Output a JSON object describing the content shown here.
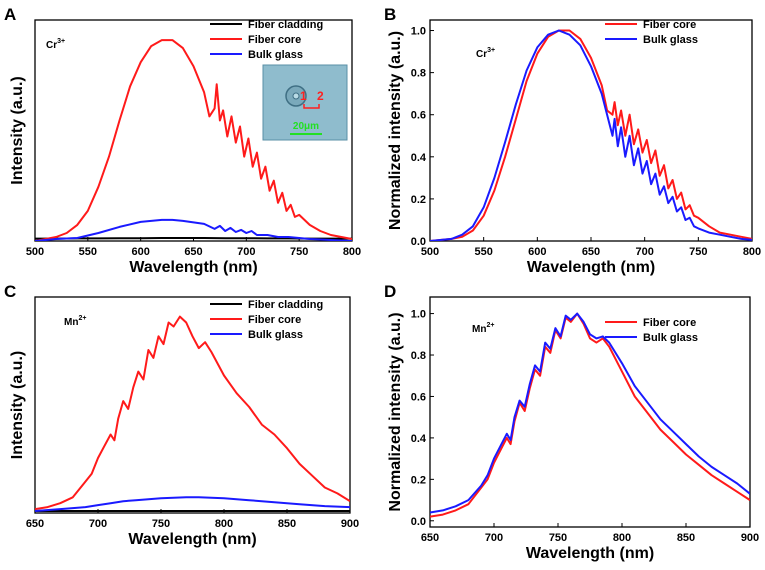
{
  "colors": {
    "cladding": "#000000",
    "core": "#ff1a1a",
    "bulk": "#1a1aff",
    "inset_bg": "#8fbccd",
    "scale_bar": "#22e022",
    "marker": "#ff2020"
  },
  "chart_data": [
    {
      "id": "A",
      "panel_label": "A",
      "type": "line",
      "ion": "Cr",
      "ion_charge": "3+",
      "xlabel": "Wavelength (nm)",
      "ylabel": "Intensity (a.u.)",
      "xlim": [
        500,
        800
      ],
      "xticks": [
        500,
        550,
        600,
        650,
        700,
        750,
        800
      ],
      "ylim": [
        0,
        1.1
      ],
      "yticks": [],
      "legend_position": "top-right",
      "inset": {
        "marker_1": "1",
        "marker_2": "2",
        "scale_label": "20μm"
      },
      "series": [
        {
          "name": "Fiber cladding",
          "color": "#000000",
          "x": [
            500,
            520,
            540,
            560,
            580,
            600,
            620,
            640,
            660,
            680,
            700,
            720,
            740,
            760,
            780,
            800
          ],
          "y": [
            0.012,
            0.012,
            0.013,
            0.013,
            0.014,
            0.014,
            0.015,
            0.015,
            0.015,
            0.014,
            0.014,
            0.013,
            0.013,
            0.012,
            0.012,
            0.012
          ]
        },
        {
          "name": "Fiber core",
          "color": "#ff1a1a",
          "x": [
            500,
            520,
            530,
            540,
            550,
            560,
            570,
            580,
            590,
            600,
            610,
            620,
            630,
            640,
            650,
            660,
            665,
            670,
            672,
            675,
            678,
            682,
            686,
            690,
            694,
            698,
            702,
            706,
            710,
            714,
            718,
            722,
            726,
            730,
            734,
            738,
            742,
            746,
            750,
            760,
            770,
            780,
            790,
            800
          ],
          "y": [
            0.0,
            0.02,
            0.04,
            0.08,
            0.15,
            0.27,
            0.42,
            0.6,
            0.77,
            0.89,
            0.97,
            1.0,
            1.0,
            0.96,
            0.87,
            0.74,
            0.62,
            0.66,
            0.78,
            0.6,
            0.65,
            0.52,
            0.62,
            0.49,
            0.57,
            0.42,
            0.51,
            0.37,
            0.44,
            0.31,
            0.37,
            0.25,
            0.3,
            0.19,
            0.24,
            0.15,
            0.18,
            0.12,
            0.13,
            0.08,
            0.05,
            0.03,
            0.02,
            0.01
          ]
        },
        {
          "name": "Bulk glass",
          "color": "#1a1aff",
          "x": [
            500,
            520,
            540,
            560,
            580,
            600,
            620,
            630,
            640,
            660,
            670,
            675,
            680,
            685,
            690,
            695,
            700,
            705,
            710,
            720,
            730,
            740,
            760,
            780,
            800
          ],
          "y": [
            0.0,
            0.01,
            0.015,
            0.04,
            0.07,
            0.095,
            0.105,
            0.105,
            0.1,
            0.085,
            0.06,
            0.075,
            0.05,
            0.065,
            0.045,
            0.055,
            0.04,
            0.05,
            0.03,
            0.03,
            0.02,
            0.02,
            0.01,
            0.005,
            0.0
          ]
        }
      ]
    },
    {
      "id": "B",
      "panel_label": "B",
      "type": "line",
      "ion": "Cr",
      "ion_charge": "3+",
      "xlabel": "Wavelength (nm)",
      "ylabel": "Normalized intensity (a.u.)",
      "xlim": [
        500,
        800
      ],
      "xticks": [
        500,
        550,
        600,
        650,
        700,
        750,
        800
      ],
      "ylim": [
        0,
        1.05
      ],
      "yticks": [
        0.0,
        0.2,
        0.4,
        0.6,
        0.8,
        1.0
      ],
      "legend_position": "top-right",
      "series": [
        {
          "name": "Fiber core",
          "color": "#ff1a1a",
          "x": [
            500,
            520,
            530,
            540,
            550,
            560,
            570,
            580,
            590,
            600,
            610,
            620,
            630,
            640,
            650,
            660,
            665,
            670,
            672,
            675,
            678,
            682,
            686,
            690,
            694,
            698,
            702,
            706,
            710,
            714,
            718,
            722,
            726,
            730,
            734,
            738,
            742,
            746,
            750,
            760,
            770,
            780,
            790,
            800
          ],
          "y": [
            0.0,
            0.01,
            0.02,
            0.05,
            0.12,
            0.24,
            0.4,
            0.58,
            0.76,
            0.89,
            0.97,
            1.0,
            1.0,
            0.96,
            0.87,
            0.74,
            0.62,
            0.6,
            0.66,
            0.55,
            0.62,
            0.5,
            0.6,
            0.46,
            0.53,
            0.42,
            0.48,
            0.37,
            0.43,
            0.31,
            0.36,
            0.25,
            0.29,
            0.2,
            0.23,
            0.15,
            0.17,
            0.12,
            0.11,
            0.07,
            0.04,
            0.03,
            0.02,
            0.01
          ]
        },
        {
          "name": "Bulk glass",
          "color": "#1a1aff",
          "x": [
            500,
            520,
            530,
            540,
            550,
            560,
            570,
            580,
            590,
            600,
            610,
            620,
            630,
            640,
            650,
            660,
            665,
            670,
            672,
            675,
            678,
            682,
            686,
            690,
            694,
            698,
            702,
            706,
            710,
            714,
            718,
            722,
            726,
            730,
            734,
            738,
            742,
            746,
            750,
            760,
            770,
            780,
            790,
            800
          ],
          "y": [
            0.0,
            0.01,
            0.03,
            0.07,
            0.16,
            0.3,
            0.47,
            0.65,
            0.81,
            0.92,
            0.98,
            1.0,
            0.98,
            0.93,
            0.83,
            0.7,
            0.6,
            0.5,
            0.58,
            0.45,
            0.54,
            0.4,
            0.5,
            0.36,
            0.44,
            0.32,
            0.38,
            0.27,
            0.32,
            0.22,
            0.26,
            0.18,
            0.21,
            0.14,
            0.16,
            0.1,
            0.11,
            0.07,
            0.06,
            0.04,
            0.03,
            0.02,
            0.01,
            0.005
          ]
        }
      ]
    },
    {
      "id": "C",
      "panel_label": "C",
      "type": "line",
      "ion": "Mn",
      "ion_charge": "2+",
      "xlabel": "Wavelength (nm)",
      "ylabel": "Intensity (a.u.)",
      "xlim": [
        650,
        900
      ],
      "xticks": [
        650,
        700,
        750,
        800,
        850,
        900
      ],
      "ylim": [
        0,
        1.1
      ],
      "yticks": [],
      "legend_position": "top-right",
      "series": [
        {
          "name": "Fiber cladding",
          "color": "#000000",
          "x": [
            650,
            700,
            750,
            800,
            850,
            900
          ],
          "y": [
            0.01,
            0.01,
            0.01,
            0.01,
            0.01,
            0.01
          ]
        },
        {
          "name": "Fiber core",
          "color": "#ff1a1a",
          "x": [
            650,
            660,
            670,
            680,
            690,
            695,
            700,
            705,
            710,
            713,
            716,
            720,
            724,
            728,
            732,
            736,
            740,
            744,
            748,
            752,
            756,
            760,
            765,
            770,
            775,
            780,
            785,
            790,
            800,
            810,
            820,
            830,
            840,
            850,
            860,
            870,
            880,
            890,
            900
          ],
          "y": [
            0.02,
            0.03,
            0.05,
            0.08,
            0.16,
            0.2,
            0.28,
            0.34,
            0.4,
            0.37,
            0.48,
            0.57,
            0.53,
            0.64,
            0.72,
            0.68,
            0.83,
            0.79,
            0.9,
            0.86,
            0.97,
            0.95,
            1.0,
            0.97,
            0.9,
            0.84,
            0.87,
            0.82,
            0.7,
            0.61,
            0.54,
            0.45,
            0.4,
            0.33,
            0.25,
            0.19,
            0.13,
            0.1,
            0.06
          ]
        },
        {
          "name": "Bulk glass",
          "color": "#1a1aff",
          "x": [
            650,
            670,
            690,
            700,
            710,
            720,
            730,
            740,
            750,
            760,
            770,
            780,
            790,
            800,
            820,
            840,
            860,
            880,
            900
          ],
          "y": [
            0.01,
            0.02,
            0.03,
            0.04,
            0.05,
            0.06,
            0.065,
            0.07,
            0.075,
            0.078,
            0.08,
            0.08,
            0.078,
            0.075,
            0.065,
            0.055,
            0.045,
            0.035,
            0.03
          ]
        }
      ]
    },
    {
      "id": "D",
      "panel_label": "D",
      "type": "line",
      "ion": "Mn",
      "ion_charge": "2+",
      "xlabel": "Wavelength (nm)",
      "ylabel": "Normalized intensity (a.u.)",
      "xlim": [
        650,
        900
      ],
      "xticks": [
        650,
        700,
        750,
        800,
        850,
        900
      ],
      "ylim": [
        -0.03,
        1.08
      ],
      "yticks": [
        0.0,
        0.2,
        0.4,
        0.6,
        0.8,
        1.0
      ],
      "legend_position": "top-right",
      "series": [
        {
          "name": "Fiber core",
          "color": "#ff1a1a",
          "x": [
            650,
            660,
            670,
            680,
            690,
            695,
            700,
            705,
            710,
            713,
            716,
            720,
            724,
            728,
            732,
            736,
            740,
            744,
            748,
            752,
            756,
            760,
            765,
            770,
            775,
            780,
            785,
            790,
            800,
            810,
            820,
            830,
            840,
            850,
            860,
            870,
            880,
            890,
            900
          ],
          "y": [
            0.02,
            0.03,
            0.05,
            0.08,
            0.16,
            0.2,
            0.28,
            0.34,
            0.4,
            0.37,
            0.48,
            0.57,
            0.53,
            0.64,
            0.73,
            0.7,
            0.84,
            0.81,
            0.92,
            0.88,
            0.98,
            0.96,
            1.0,
            0.95,
            0.88,
            0.86,
            0.88,
            0.84,
            0.72,
            0.6,
            0.52,
            0.44,
            0.38,
            0.32,
            0.27,
            0.22,
            0.18,
            0.14,
            0.1
          ]
        },
        {
          "name": "Bulk glass",
          "color": "#1a1aff",
          "x": [
            650,
            660,
            670,
            680,
            690,
            695,
            700,
            705,
            710,
            713,
            716,
            720,
            724,
            728,
            732,
            736,
            740,
            744,
            748,
            752,
            756,
            760,
            765,
            770,
            775,
            780,
            785,
            790,
            800,
            810,
            820,
            830,
            840,
            850,
            860,
            870,
            880,
            890,
            900
          ],
          "y": [
            0.04,
            0.05,
            0.07,
            0.1,
            0.17,
            0.22,
            0.3,
            0.36,
            0.42,
            0.39,
            0.5,
            0.58,
            0.55,
            0.66,
            0.75,
            0.72,
            0.86,
            0.83,
            0.93,
            0.89,
            0.99,
            0.97,
            1.0,
            0.96,
            0.9,
            0.88,
            0.89,
            0.86,
            0.76,
            0.65,
            0.57,
            0.49,
            0.43,
            0.37,
            0.31,
            0.26,
            0.22,
            0.18,
            0.13
          ]
        }
      ]
    }
  ]
}
